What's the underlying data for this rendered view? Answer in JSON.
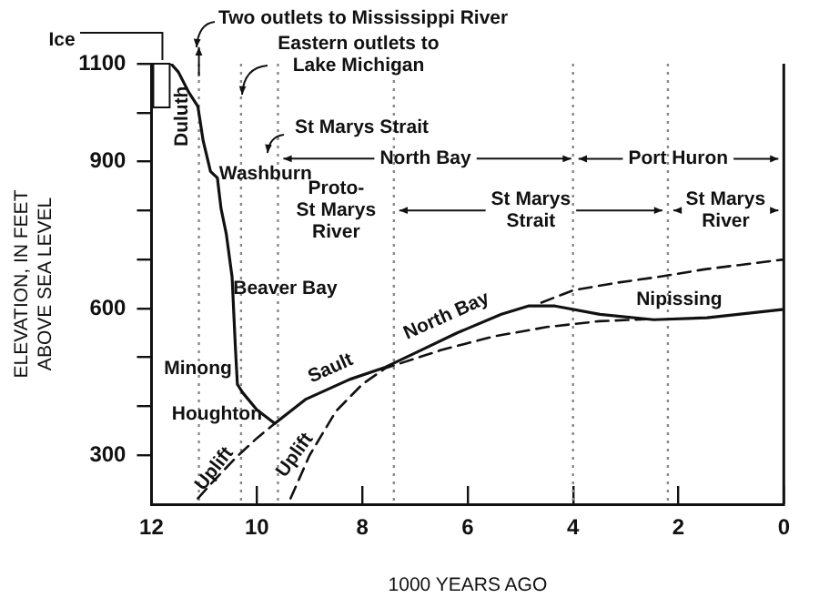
{
  "chart_data": {
    "type": "line",
    "xlabel": "1000 YEARS AGO",
    "ylabel": "ELEVATION, IN FEET\nABOVE SEA LEVEL",
    "xlim": [
      12,
      0
    ],
    "xticks": [
      12,
      10,
      8,
      6,
      4,
      2,
      0
    ],
    "ylim": [
      200,
      1100
    ],
    "yticks": [
      300,
      {
        "value": 400,
        "label": null
      },
      {
        "value": 500,
        "label": null
      },
      600,
      {
        "value": 700,
        "label": null
      },
      {
        "value": 800,
        "label": null
      },
      900,
      {
        "value": 1000,
        "label": null
      },
      1100
    ],
    "grid": false,
    "legend": false,
    "marker": "none",
    "series": [
      {
        "color": "#111111",
        "line_style": "solid",
        "x": [
          11.63,
          11.49,
          11.29,
          11.12,
          11.02,
          10.88,
          10.75,
          10.68,
          10.58,
          10.47,
          10.44,
          10.41,
          10.37,
          10.27,
          10.0,
          9.66,
          9.08,
          8.24,
          7.56,
          6.88,
          6.2,
          5.36,
          4.85,
          4.34,
          3.49,
          2.47,
          1.46,
          0
        ],
        "values": [
          1100,
          1083,
          1041,
          1013,
          943,
          880,
          867,
          804,
          752,
          664,
          595,
          525,
          445,
          428,
          393,
          365,
          414,
          455,
          480,
          515,
          550,
          588,
          605,
          605,
          588,
          577,
          581,
          598
        ]
      },
      {
        "color": "#111111",
        "line_style": "dashed",
        "x": [
          11.12,
          10.8,
          10.4,
          10.0,
          9.66
        ],
        "values": [
          212,
          250,
          295,
          335,
          365
        ]
      },
      {
        "color": "#111111",
        "line_style": "dashed",
        "x": [
          9.36,
          9.0,
          8.5,
          8.0,
          7.56,
          6.5,
          5.5,
          4.5,
          3.5,
          2.6
        ],
        "values": [
          212,
          300,
          390,
          445,
          478,
          515,
          543,
          562,
          574,
          578
        ]
      },
      {
        "color": "#111111",
        "line_style": "dashed",
        "x": [
          4.6,
          4.0,
          3.2,
          2.41,
          1.5,
          0
        ],
        "values": [
          612,
          637,
          652,
          664,
          680,
          700
        ]
      }
    ],
    "ref_lines": [
      {
        "axis": "x",
        "value": 11.1,
        "line_style": "dotted",
        "color": "#888888"
      },
      {
        "axis": "x",
        "value": 10.3,
        "line_style": "dotted",
        "color": "#888888"
      },
      {
        "axis": "x",
        "value": 9.6,
        "line_style": "dotted",
        "color": "#888888"
      },
      {
        "axis": "x",
        "value": 7.4,
        "line_style": "dotted",
        "color": "#888888"
      },
      {
        "axis": "x",
        "value": 4.0,
        "line_style": "dotted",
        "color": "#888888"
      },
      {
        "axis": "x",
        "value": 2.2,
        "line_style": "dotted",
        "color": "#888888"
      }
    ],
    "annotations": [
      "Ice",
      "Two outlets to Mississippi River",
      "Eastern outlets to\nLake Michigan",
      "St Marys Strait",
      {
        "text": "Duluth",
        "x": 11.1,
        "y": 1000
      },
      {
        "text": "Washburn",
        "x": 10.75,
        "y": 867
      },
      {
        "text": "Beaver Bay",
        "x": 10.45,
        "y": 640
      },
      {
        "text": "Minong",
        "x": 10.37,
        "y": 440
      },
      {
        "text": "Houghton",
        "x": 9.66,
        "y": 365
      },
      {
        "text": "Sault",
        "x": 8.6,
        "y": 440
      },
      {
        "text": "North Bay",
        "x": 6.4,
        "y": 540
      },
      {
        "text": "Nipissing",
        "x": 2.8,
        "y": 580
      },
      {
        "text": "Uplift",
        "x": 10.6,
        "y": 272
      },
      {
        "text": "Uplift",
        "x": 9.0,
        "y": 300
      },
      {
        "text": "North Bay",
        "x": 4.0,
        "y": 906
      },
      "Port Huron",
      "Proto-\nSt Marys\nRiver",
      "St Marys\nStrait",
      "St Marys\nRiver"
    ]
  }
}
